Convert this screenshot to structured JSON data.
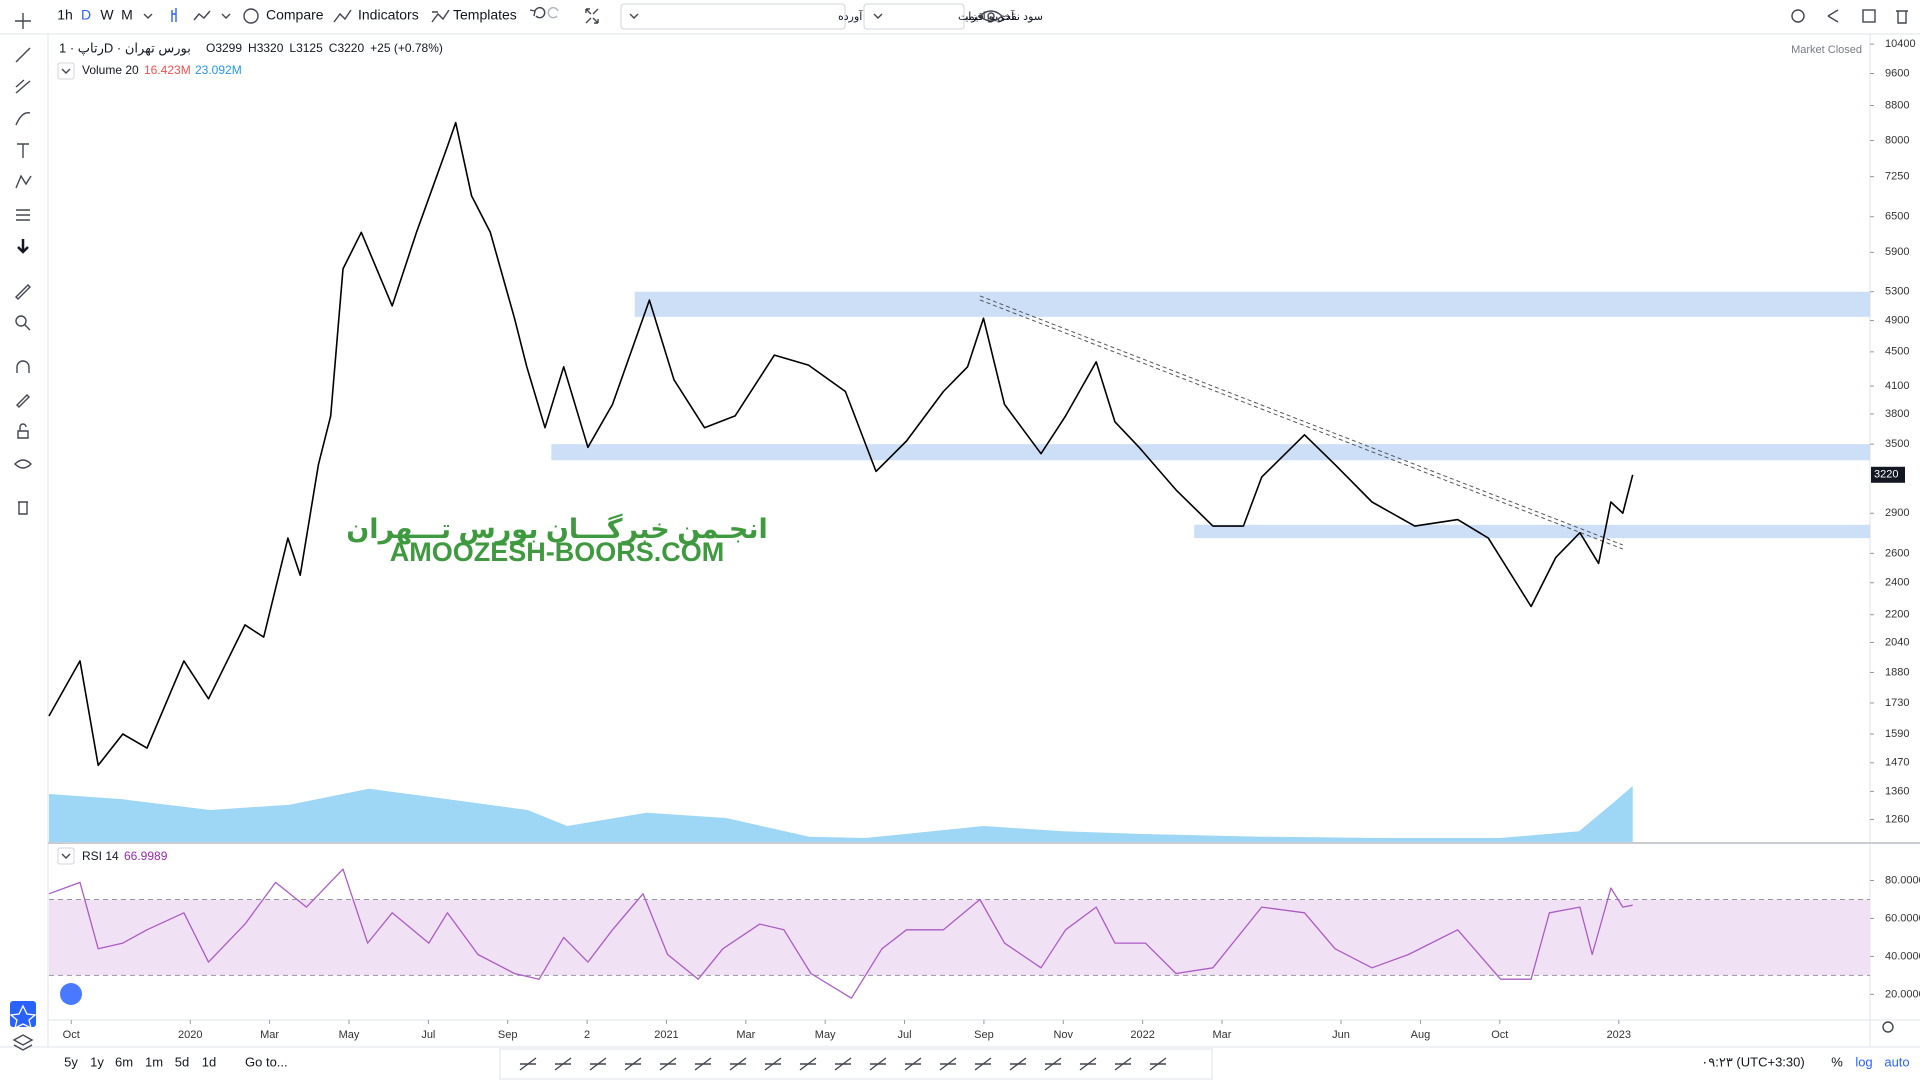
{
  "toolbar": {
    "intervals": [
      "1h",
      "D",
      "W",
      "M"
    ],
    "active_interval_index": 1,
    "compare": "Compare",
    "indicators": "Indicators",
    "templates": "Templates",
    "adjustment": "سود نقدی و افزایش سرمایه با احتساب آورده",
    "price_type": "آخرین قیمت"
  },
  "legend": {
    "title": "رتاپ · 1D · بورس تهران",
    "ohlc": [
      "O3299",
      "H3320",
      "L3125",
      "C3220",
      "+25 (+0.78%)"
    ],
    "volume_name": "Volume 20",
    "volume_values": [
      "16.423M",
      "23.092M"
    ],
    "rsi_name": "RSI 14",
    "rsi_value": "66.9989"
  },
  "status": "Market Closed",
  "watermark": [
    "انجـمن خبرگـــان بورس تـــهران",
    "AMOOZESH-BOORS.COM"
  ],
  "chart_data": [
    {
      "type": "line",
      "log_scale": true,
      "color": "#000000",
      "x": [
        -0.56,
        0.22,
        0.68,
        1.3,
        1.91,
        2.84,
        3.46,
        4.38,
        4.85,
        5.46,
        5.77,
        6.23,
        6.54,
        6.85,
        7.31,
        8.09,
        8.7,
        9.48,
        9.69,
        10.09,
        10.56,
        11.17,
        11.48,
        11.94,
        12.41,
        13.02,
        13.64,
        14.57,
        15.19,
        15.96,
        16.73,
        17.72,
        18.58,
        19.51,
        20.28,
        21.05,
        21.98,
        22.59,
        22.99,
        23.52,
        24.44,
        25.06,
        25.83,
        26.3,
        26.91,
        27.84,
        28.77,
        29.54,
        30.0,
        31.08,
        31.85,
        32.78,
        33.86,
        34.94,
        35.71,
        36.79,
        37.41,
        38.02,
        38.49,
        38.8,
        39.1,
        39.35
      ],
      "values": [
        1670,
        1940,
        1460,
        1590,
        1530,
        1940,
        1750,
        2140,
        2070,
        2710,
        2450,
        3310,
        3780,
        5640,
        6230,
        5100,
        6230,
        7870,
        8400,
        6880,
        6230,
        4930,
        4320,
        3660,
        4320,
        3470,
        3900,
        5180,
        4170,
        3660,
        3780,
        4460,
        4340,
        4040,
        3250,
        3530,
        4040,
        4320,
        4930,
        3900,
        3410,
        3780,
        4380,
        3720,
        3470,
        3090,
        2800,
        2800,
        3200,
        3590,
        3310,
        2990,
        2800,
        2850,
        2710,
        2250,
        2570,
        2750,
        2530,
        2990,
        2900,
        3220
      ],
      "xlim": [
        -0.56,
        45.33
      ],
      "xticks": [
        {
          "value": 0,
          "label": "Oct"
        },
        {
          "value": 3,
          "label": "2020"
        },
        {
          "value": 5,
          "label": "Mar"
        },
        {
          "value": 7,
          "label": "May"
        },
        {
          "value": 9,
          "label": "Jul"
        },
        {
          "value": 11,
          "label": "Sep"
        },
        {
          "value": 13,
          "label": "2"
        },
        {
          "value": 15,
          "label": "2021"
        },
        {
          "value": 17,
          "label": "Mar"
        },
        {
          "value": 19,
          "label": "May"
        },
        {
          "value": 21,
          "label": "Jul"
        },
        {
          "value": 23,
          "label": "Sep"
        },
        {
          "value": 25,
          "label": "Nov"
        },
        {
          "value": 27,
          "label": "2022"
        },
        {
          "value": 29,
          "label": "Mar"
        },
        {
          "value": 32,
          "label": "Jun"
        },
        {
          "value": 34,
          "label": "Aug"
        },
        {
          "value": 36,
          "label": "Oct"
        },
        {
          "value": 39,
          "label": "2023"
        }
      ],
      "ylim": [
        1185,
        10690
      ],
      "yticks": [
        10400,
        9600,
        8800,
        8000,
        7250,
        6500,
        5900,
        5300,
        4900,
        4500,
        4100,
        3800,
        3500,
        2900,
        2600,
        2400,
        2200,
        2040,
        1880,
        1730,
        1590,
        1470,
        1360,
        1260
      ],
      "price_label": 3220,
      "volume": {
        "x": [
          -0.56,
          1.3,
          3.5,
          5.5,
          7.5,
          9.5,
          11.5,
          12.5,
          14.5,
          16.5,
          18.6,
          20,
          23,
          25,
          27,
          30,
          33,
          36,
          38,
          38.8,
          39.35
        ],
        "values": [
          18,
          16,
          12,
          14,
          20,
          16,
          12,
          6,
          11,
          9,
          2,
          1.5,
          6,
          4,
          3,
          2,
          1.5,
          1.5,
          4,
          14,
          21
        ],
        "color": "#7ec8f2",
        "vlim": [
          0,
          60
        ]
      },
      "zones": [
        {
          "x": 14.2,
          "low": 4950,
          "high": 5300
        },
        {
          "x": 12.1,
          "low": 3350,
          "high": 3500
        },
        {
          "x": 28.3,
          "low": 2710,
          "high": 2810
        }
      ],
      "zone_color": "#c4d9f6",
      "trendline": {
        "x": [
          22.9,
          39.1
        ],
        "values": [
          5240,
          2660
        ],
        "color": "#555555"
      }
    },
    {
      "type": "line",
      "color": "#ab5cc6",
      "x": [
        -0.56,
        0.22,
        0.68,
        1.3,
        1.91,
        2.84,
        3.46,
        4.38,
        5.15,
        5.93,
        6.85,
        7.47,
        8.09,
        9.01,
        9.48,
        10.25,
        11.17,
        11.79,
        12.41,
        13.02,
        13.64,
        14.41,
        15.03,
        15.8,
        16.42,
        17.35,
        17.96,
        18.64,
        19.66,
        20.43,
        21.05,
        21.98,
        22.9,
        23.52,
        24.44,
        25.06,
        25.83,
        26.3,
        27.07,
        27.84,
        28.77,
        30.0,
        31.08,
        31.85,
        32.78,
        33.7,
        34.94,
        36.02,
        36.79,
        37.25,
        38.02,
        38.33,
        38.8,
        39.1,
        39.35
      ],
      "values": [
        73,
        79,
        44,
        47,
        54,
        63,
        37,
        57,
        79,
        66,
        86,
        47,
        63,
        47,
        63,
        41,
        31,
        28,
        50,
        37,
        54,
        73,
        41,
        28,
        44,
        57,
        54,
        31,
        18,
        44,
        54,
        54,
        70,
        47,
        34,
        54,
        66,
        47,
        47,
        31,
        34,
        66,
        63,
        44,
        34,
        41,
        54,
        28,
        28,
        63,
        66,
        41,
        76,
        66,
        67
      ],
      "xlim": [
        -0.56,
        45.33
      ],
      "ylim": [
        6.5,
        98.7
      ],
      "yticks": [
        {
          "value": 80,
          "label": "80.0000"
        },
        {
          "value": 60,
          "label": "60.0000"
        },
        {
          "value": 40,
          "label": "40.0000"
        },
        {
          "value": 20,
          "label": "20.0000"
        }
      ],
      "bands": [
        30,
        70
      ],
      "band_color": "#f1e1f5"
    }
  ],
  "bottom_bar": {
    "ranges": [
      "5y",
      "1y",
      "6m",
      "1m",
      "5d",
      "1d"
    ],
    "goto": "Go to...",
    "clock": "۰۹:۲۳ (UTC+3:30)",
    "scale_buttons": [
      "%",
      "log",
      "auto"
    ]
  }
}
